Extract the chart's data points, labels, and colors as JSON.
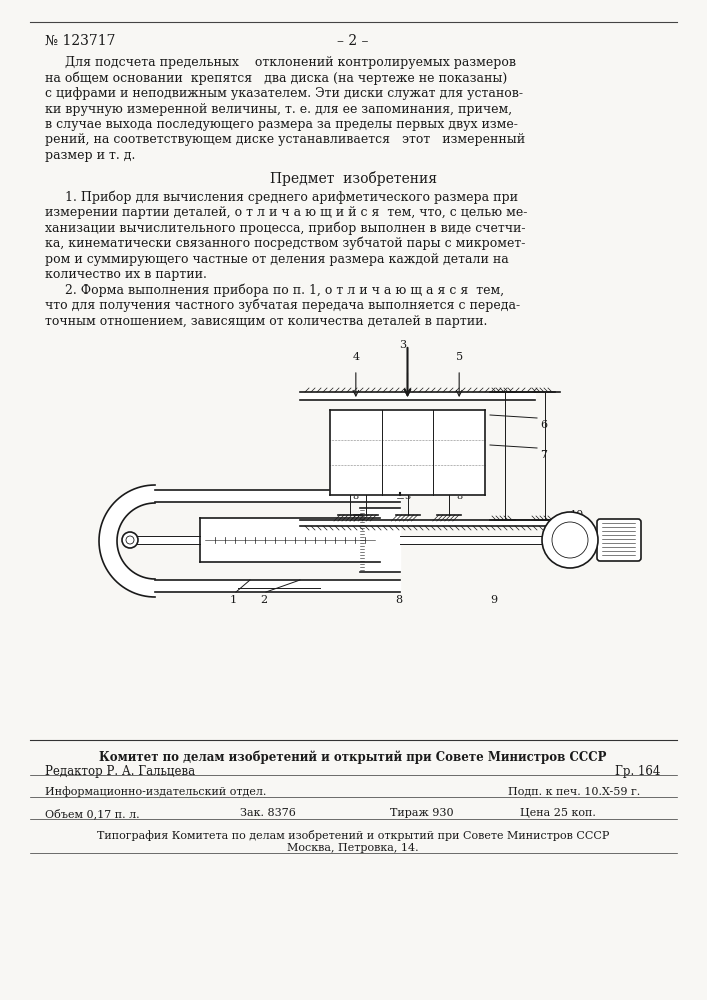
{
  "page_color": "#f8f7f4",
  "text_color": "#1a1a1a",
  "header_left": "№ 123717",
  "header_center": "– 2 –",
  "para1_line1": "Для подсчета предельных    отклонений контролируемых размеров",
  "para1_line2": "на общем основании  крепятся   два диска (на чертеже не показаны)",
  "para1_line3": "с цифрами и неподвижным указателем. Эти диски служат для установ-",
  "para1_line4": "ки вручную измеренной величины, т. е. для ее запоминания, причем,",
  "para1_line5": "в случае выхода последующего размера за пределы первых двух изме-",
  "para1_line6": "рений, на соответствующем диске устанавливается   этот   измеренный",
  "para1_line7": "размер и т. д.",
  "section_title": "Предмет  изобретения",
  "para2_line1": "1. Прибор для вычисления среднего арифметического размера при",
  "para2_line2": "измерении партии деталей, о т л и ч а ю щ и й с я  тем, что, с целью ме-",
  "para2_line3": "ханизации вычислительного процесса, прибор выполнен в виде счетчи-",
  "para2_line4": "ка, кинематически связанного посредством зубчатой пары с микромет-",
  "para2_line5": "ром и суммирующего частные от деления размера каждой детали на",
  "para2_line6": "количество их в партии.",
  "para3_line1": "2. Форма выполнения прибора по п. 1, о т л и ч а ю щ а я с я  тем,",
  "para3_line2": "что для получения частного зубчатая передача выполняется с переда-",
  "para3_line3": "точным отношением, зависящим от количества деталей в партии.",
  "footer_committee": "Комитет по делам изобретений и открытий при Совете Министров СССР",
  "footer_editor": "Редактор Р. А. Гальцева",
  "footer_gr": "Гр. 164",
  "footer_info": "Информационно-издательский отдел.",
  "footer_podp": "Подп. к печ. 10.X-59 г.",
  "footer_obem": "Объем 0,17 п. л.",
  "footer_zak": "Зак. 8376",
  "footer_tirazh": "Тираж 930",
  "footer_cena": "Цена 25 коп.",
  "footer_tipografia": "Типография Комитета по делам изобретений и открытий при Совете Министров СССР",
  "footer_moscow": "Москва, Петровка, 14."
}
